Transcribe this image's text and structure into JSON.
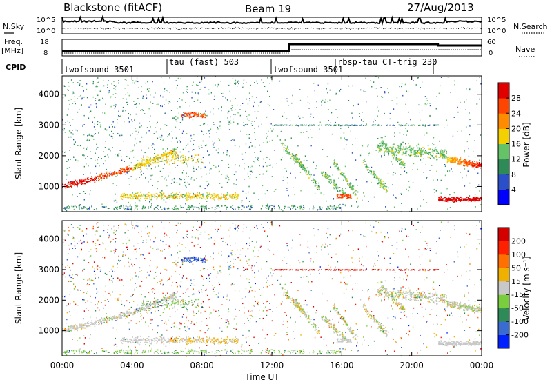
{
  "header": {
    "radar": "Blackstone (fitACF)",
    "beam": "Beam 19",
    "date": "27/Aug/2013"
  },
  "noise_panel": {
    "left_label": "N.Sky",
    "left_ticks": [
      "10^5",
      "10^0"
    ],
    "right_label": "N.Search",
    "right_ticks": [
      "10^5",
      "10^0"
    ]
  },
  "freq_panel": {
    "left_label_1": "Freq.",
    "left_label_2": "[MHz]",
    "left_ticks": [
      "18",
      "8"
    ],
    "right_label": "Nave",
    "right_ticks": [
      "60",
      "0"
    ]
  },
  "cpid": {
    "label": "CPID",
    "segments": [
      {
        "name": "twofsound 3501",
        "start_hour": 0,
        "end_hour": 6
      },
      {
        "name": "tau (fast) 503",
        "start_hour": 6,
        "end_hour": 12
      },
      {
        "name": "twofsound 3501",
        "start_hour": 12,
        "end_hour": 16
      },
      {
        "name": "rbsp-tau CT-trig 230",
        "start_hour": 16,
        "end_hour": 21.5
      }
    ]
  },
  "chart_data": [
    {
      "type": "heatmap",
      "name": "power",
      "ylabel": "Slant Range [km]",
      "yticks": [
        "1000",
        "2000",
        "3000",
        "4000"
      ],
      "ylim": [
        180,
        4600
      ],
      "xlim": [
        0,
        24
      ],
      "colorbar_label": "Power [dB]",
      "colorbar_ticks": [
        "4",
        "8",
        "12",
        "16",
        "20",
        "24",
        "28"
      ],
      "colorbar_colors": [
        "#0000ff",
        "#2a4fc8",
        "#2e8b57",
        "#66c266",
        "#f5d000",
        "#ff8c00",
        "#ff4500",
        "#e00000"
      ]
    },
    {
      "type": "heatmap",
      "name": "velocity",
      "xlabel": "Time UT",
      "ylabel": "Slant Range [km]",
      "yticks": [
        "1000",
        "2000",
        "3000",
        "4000"
      ],
      "ylim": [
        180,
        4600
      ],
      "xlim": [
        0,
        24
      ],
      "xticks": [
        "00:00",
        "04:00",
        "08:00",
        "12:00",
        "16:00",
        "20:00",
        "00:00"
      ],
      "colorbar_label": "Velocity [m s⁻¹]",
      "colorbar_ticks": [
        "200",
        "100",
        "50",
        "15",
        "-15",
        "-50",
        "-100",
        "-200"
      ],
      "colorbar_colors": [
        "#0020ff",
        "#3a6bd0",
        "#2e8b57",
        "#7acd3c",
        "#c8c8c8",
        "#f0b000",
        "#ff7000",
        "#ff2000",
        "#d40000"
      ]
    }
  ]
}
